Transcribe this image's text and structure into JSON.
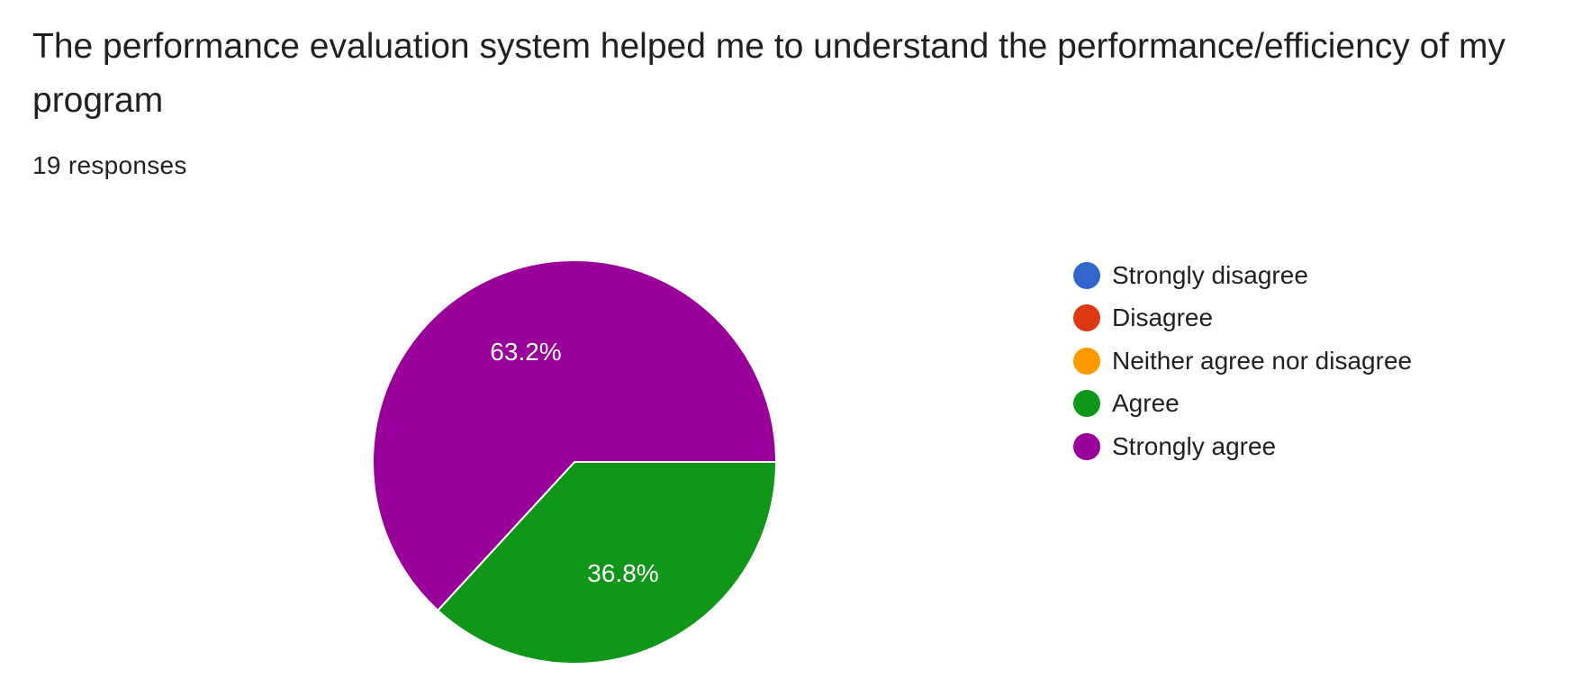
{
  "question": {
    "title": "The performance evaluation system helped me to understand the performance/efficiency of my program",
    "responses_label": "19 responses"
  },
  "colors": {
    "strongly_disagree": "#3366cc",
    "disagree": "#dc3912",
    "neither": "#ff9900",
    "agree": "#109618",
    "strongly_agree": "#990099"
  },
  "chart_data": {
    "type": "pie",
    "title": "The performance evaluation system helped me to understand the performance/efficiency of my program",
    "total_responses": 19,
    "legend_position": "right",
    "slices": [
      {
        "label": "Strongly disagree",
        "value": 0,
        "percent": 0,
        "percent_label": "",
        "color": "#3366cc"
      },
      {
        "label": "Disagree",
        "value": 0,
        "percent": 0,
        "percent_label": "",
        "color": "#dc3912"
      },
      {
        "label": "Neither agree nor disagree",
        "value": 0,
        "percent": 0,
        "percent_label": "",
        "color": "#ff9900"
      },
      {
        "label": "Agree",
        "value": 7,
        "percent": 36.8,
        "percent_label": "36.8%",
        "color": "#109618"
      },
      {
        "label": "Strongly agree",
        "value": 12,
        "percent": 63.2,
        "percent_label": "63.2%",
        "color": "#990099"
      }
    ]
  }
}
